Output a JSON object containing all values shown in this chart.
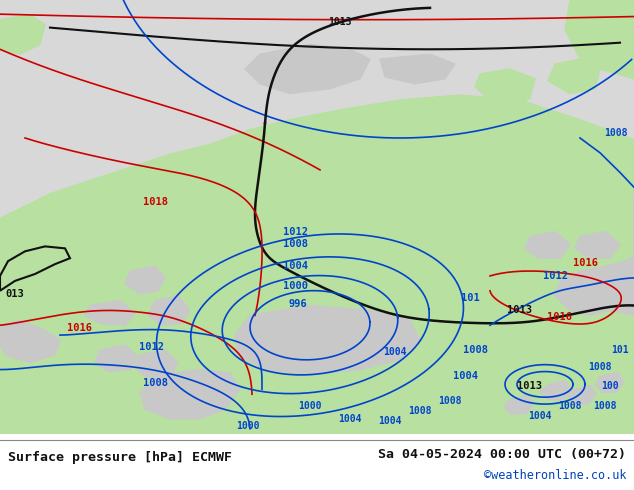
{
  "title_left": "Surface pressure [hPa] ECMWF",
  "title_right": "Sa 04-05-2024 00:00 UTC (00+72)",
  "credit": "©weatheronline.co.uk",
  "bg_land": "#b8e0a0",
  "bg_gray": "#c8c8c8",
  "bg_white": "#e8e8e8",
  "black": "#111111",
  "blue": "#0044cc",
  "red": "#cc0000",
  "credit_color": "#0044bb",
  "caption_bg": "#ffffff"
}
